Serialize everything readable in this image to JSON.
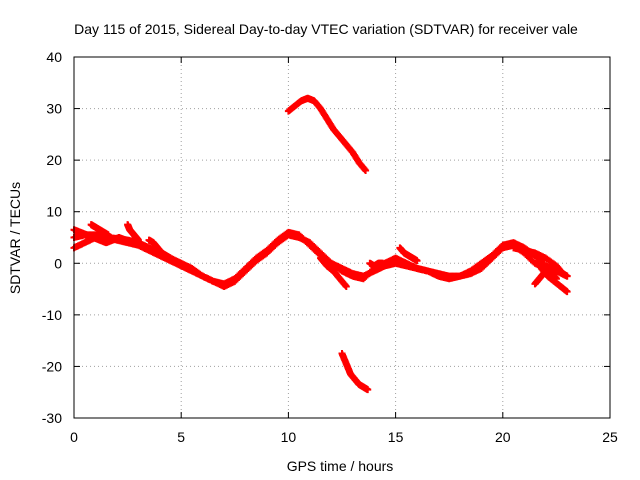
{
  "chart_data": {
    "type": "scatter",
    "title": "Day 115 of 2015, Sidereal Day-to-day VTEC variation (SDTVAR) for receiver vale",
    "xlabel": "GPS time / hours",
    "ylabel": "SDTVAR / TECUs",
    "xlim": [
      0,
      25
    ],
    "ylim": [
      -30,
      40
    ],
    "xticks": [
      "0",
      "5",
      "10",
      "15",
      "20",
      "25"
    ],
    "yticks": [
      "-30",
      "-20",
      "-10",
      "0",
      "10",
      "20",
      "30",
      "40"
    ],
    "grid": true,
    "marker": "plus",
    "color": "#ff0000",
    "series": [
      {
        "name": "s1",
        "x": [
          0,
          0.5,
          1,
          1.5,
          2,
          2.5,
          3,
          3.5,
          4,
          4.5,
          5,
          5.5,
          6,
          6.5,
          7,
          7.5,
          8,
          8.5,
          9,
          9.5,
          10,
          10.5,
          11,
          11.5,
          12,
          12.5,
          13,
          13.5,
          14,
          14.5,
          15,
          15.5,
          16,
          16.5,
          17,
          17.5,
          18,
          18.5,
          19,
          19.5,
          20,
          20.5,
          21,
          21.5,
          22
        ],
        "y": [
          5,
          5.5,
          5.5,
          5,
          4.8,
          4.5,
          4,
          3,
          2,
          1,
          0,
          -1,
          -2.5,
          -3.5,
          -4,
          -3,
          -1,
          1,
          2.5,
          4.5,
          6,
          5.5,
          3.5,
          1.5,
          0,
          -1,
          -2,
          -2.5,
          -1.5,
          -0.5,
          0,
          -0.5,
          -1,
          -1.5,
          -2,
          -2.5,
          -2.5,
          -2,
          -1,
          1,
          3,
          3.5,
          2,
          0,
          -1
        ]
      },
      {
        "name": "s2",
        "x": [
          0,
          0.5,
          1,
          1.5,
          2,
          2.5,
          3,
          3.5,
          4,
          4.5,
          5,
          5.5,
          6,
          6.5,
          7,
          7.5,
          8,
          8.5,
          9,
          9.5,
          10,
          10.5,
          11,
          11.5,
          12,
          12.5,
          13,
          13.5,
          14,
          14.5,
          15,
          15.5,
          16,
          16.5,
          17,
          17.5,
          18,
          18.5,
          19,
          19.5,
          20,
          20.5,
          21,
          21.5,
          22,
          22.5,
          23
        ],
        "y": [
          3,
          4,
          5,
          5,
          4.5,
          4,
          3.5,
          2.5,
          1.5,
          0.5,
          -0.5,
          -1.5,
          -2.5,
          -3.5,
          -4.5,
          -3.5,
          -1.5,
          0.5,
          2,
          4,
          5.5,
          5,
          4,
          2,
          0,
          -1.5,
          -2.5,
          -3,
          -1,
          0,
          1,
          0,
          -1,
          -1.5,
          -2.5,
          -3,
          -2.5,
          -1.5,
          0,
          1.5,
          3.5,
          4,
          3,
          1.5,
          -0.5,
          -1.5,
          -2.5
        ]
      },
      {
        "name": "s3",
        "x": [
          0,
          0.3,
          0.6,
          0.9,
          1.2,
          1.5,
          1.8,
          2.1,
          2.4
        ],
        "y": [
          6.5,
          6,
          5.5,
          5,
          4.5,
          4,
          4.5,
          5,
          4.5
        ]
      },
      {
        "name": "s4",
        "x": [
          0.8,
          1,
          1.2,
          1.4,
          1.6
        ],
        "y": [
          7.5,
          7,
          6.5,
          6,
          5.5
        ]
      },
      {
        "name": "s5",
        "x": [
          2.5,
          2.6,
          2.7,
          2.8,
          2.9,
          3
        ],
        "y": [
          7.5,
          6.5,
          6,
          5.5,
          5,
          4.5
        ]
      },
      {
        "name": "s6",
        "x": [
          3.5,
          3.7,
          3.9,
          4.1,
          4.3,
          4.5
        ],
        "y": [
          4.5,
          4,
          3,
          2,
          1.5,
          1
        ]
      },
      {
        "name": "s7",
        "x": [
          10,
          10.3,
          10.6,
          10.9,
          11.2,
          11.5,
          11.8,
          12.1,
          12.4,
          12.7,
          13,
          13.3,
          13.6
        ],
        "y": [
          29.5,
          30.5,
          31.5,
          32,
          31.5,
          30,
          28,
          26,
          24.5,
          23,
          21.5,
          19.5,
          18
        ]
      },
      {
        "name": "s8",
        "x": [
          12.5,
          12.7,
          12.9,
          13.1,
          13.3,
          13.5,
          13.7
        ],
        "y": [
          -17.5,
          -19.5,
          -21.5,
          -22.5,
          -23.5,
          -24,
          -24.5
        ]
      },
      {
        "name": "s9",
        "x": [
          11.5,
          11.8,
          12.1,
          12.4,
          12.7
        ],
        "y": [
          1,
          -0.5,
          -1.5,
          -3,
          -4.5
        ]
      },
      {
        "name": "s10",
        "x": [
          13.8,
          14,
          14.2,
          14.4
        ],
        "y": [
          0,
          -0.5,
          0,
          0
        ]
      },
      {
        "name": "s11",
        "x": [
          15.2,
          15.4,
          15.6,
          15.8,
          16
        ],
        "y": [
          3,
          2,
          1.5,
          1,
          0.5
        ]
      },
      {
        "name": "s12",
        "x": [
          21.5,
          21.7,
          21.9,
          22.1,
          22.3,
          22.5
        ],
        "y": [
          -4,
          -3,
          -2,
          -1.5,
          -2,
          -3
        ]
      },
      {
        "name": "s13",
        "x": [
          20.5,
          21,
          21.5,
          22,
          22.5,
          22.8,
          23
        ],
        "y": [
          3,
          2.5,
          2,
          1,
          -0.5,
          -2,
          -2.5
        ]
      },
      {
        "name": "s14",
        "x": [
          21.8,
          22.1,
          22.4,
          22.7,
          23
        ],
        "y": [
          -1,
          -2.5,
          -3.5,
          -4.5,
          -5.5
        ]
      }
    ]
  }
}
